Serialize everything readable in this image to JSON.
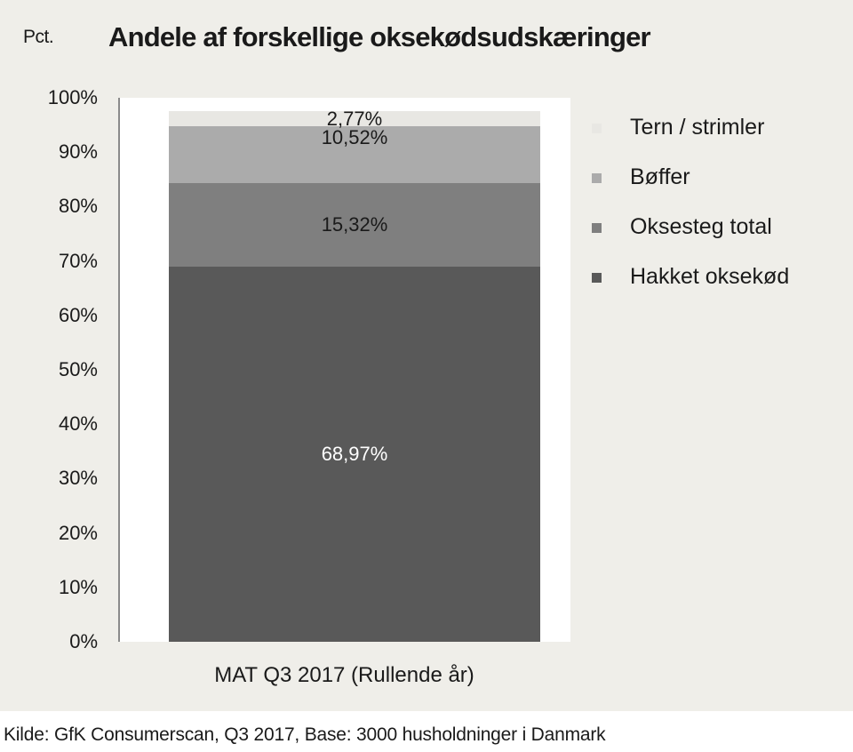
{
  "header": {
    "unit_label": "Pct.",
    "title": "Andele af forskellige oksekødsudskæringer"
  },
  "chart_data": {
    "type": "bar",
    "stacked": true,
    "title": "Andele af forskellige oksekødsudskæringer",
    "ylabel": "Pct.",
    "xlabel": "",
    "categories": [
      "MAT Q3 2017 (Rullende år)"
    ],
    "series": [
      {
        "name": "Hakket oksekød",
        "values": [
          68.97
        ],
        "label": "68,97%",
        "color": "#595959"
      },
      {
        "name": "Oksesteg total",
        "values": [
          15.32
        ],
        "label": "15,32%",
        "color": "#7f7f7f"
      },
      {
        "name": "Bøffer",
        "values": [
          10.52
        ],
        "label": "10,52%",
        "color": "#ababab"
      },
      {
        "name": "Tern / strimler",
        "values": [
          2.77
        ],
        "label": "2,77%",
        "color": "#e8e7e3"
      }
    ],
    "ylim": [
      0,
      100
    ],
    "yticks": [
      "0%",
      "10%",
      "20%",
      "30%",
      "40%",
      "50%",
      "60%",
      "70%",
      "80%",
      "90%",
      "100%"
    ],
    "grid": false,
    "legend_position": "right",
    "legend": [
      "Tern / strimler",
      "Bøffer",
      "Oksesteg total",
      "Hakket oksekød"
    ]
  },
  "footer": {
    "source": "Kilde: GfK Consumerscan, Q3 2017, Base: 3000 husholdninger i Danmark"
  }
}
